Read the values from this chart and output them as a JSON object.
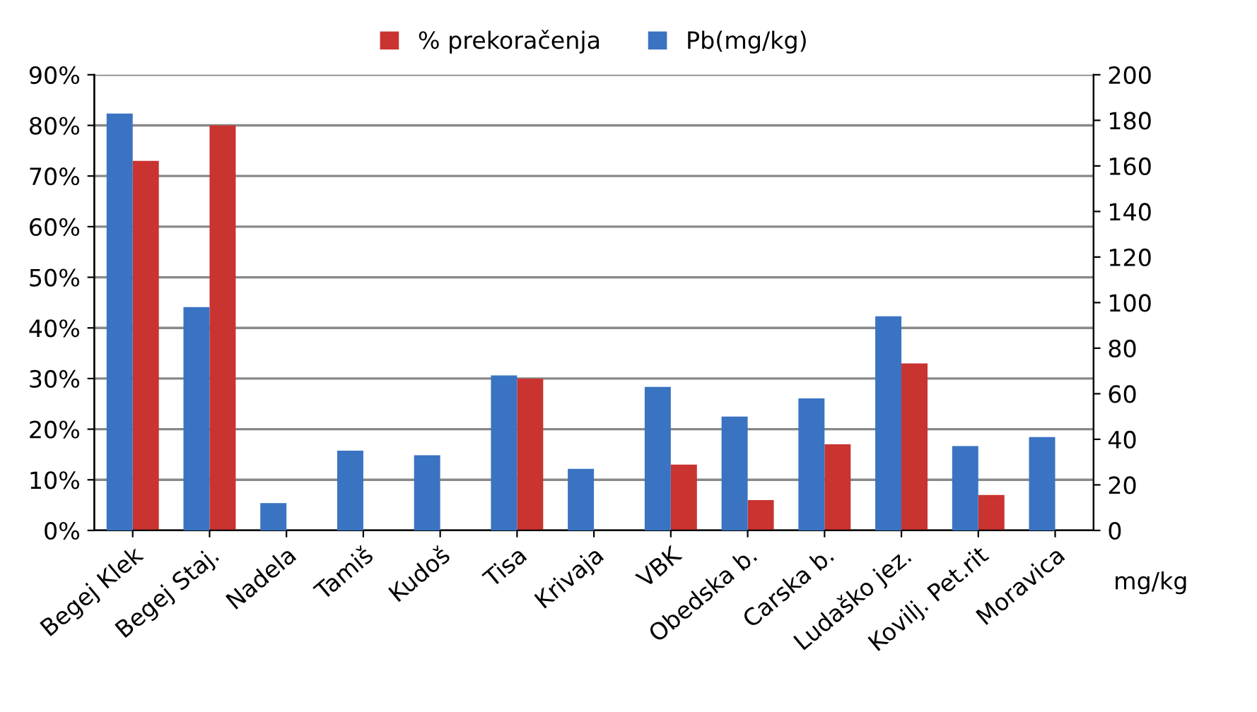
{
  "chart_data": {
    "type": "bar",
    "categories": [
      "Begej Klek",
      "Begej Staj.",
      "Nadela",
      "Tamiš",
      "Kudoš",
      "Tisa",
      "Krivaja",
      "VBK",
      "Obedska b.",
      "Carska b.",
      "Ludaško jez.",
      "Kovilj. Pet.rit",
      "Moravica"
    ],
    "series": [
      {
        "name": "Pb(mg/kg)",
        "color": "#3a73c2",
        "axis": "y2",
        "values": [
          183,
          98,
          12,
          35,
          33,
          68,
          27,
          63,
          50,
          58,
          94,
          37,
          41
        ]
      },
      {
        "name": "% prekoračenja",
        "color": "#c93330",
        "axis": "y",
        "values": [
          73,
          80,
          null,
          null,
          null,
          30,
          null,
          13,
          6,
          17,
          33,
          7,
          null
        ]
      }
    ],
    "ylim": [
      0,
      90
    ],
    "yticks": [
      {
        "value": 0,
        "label": "0%"
      },
      {
        "value": 10,
        "label": "10%"
      },
      {
        "value": 20,
        "label": "20%"
      },
      {
        "value": 30,
        "label": "30%"
      },
      {
        "value": 40,
        "label": "40%"
      },
      {
        "value": 50,
        "label": "50%"
      },
      {
        "value": 60,
        "label": "60%"
      },
      {
        "value": 70,
        "label": "70%"
      },
      {
        "value": 80,
        "label": "80%"
      },
      {
        "value": 90,
        "label": "90%"
      }
    ],
    "y2lim": [
      0,
      200
    ],
    "y2ticks": [
      0,
      20,
      40,
      60,
      80,
      100,
      120,
      140,
      160,
      180,
      200
    ],
    "y2label": "mg/kg",
    "grid": "y",
    "legend": "top"
  }
}
